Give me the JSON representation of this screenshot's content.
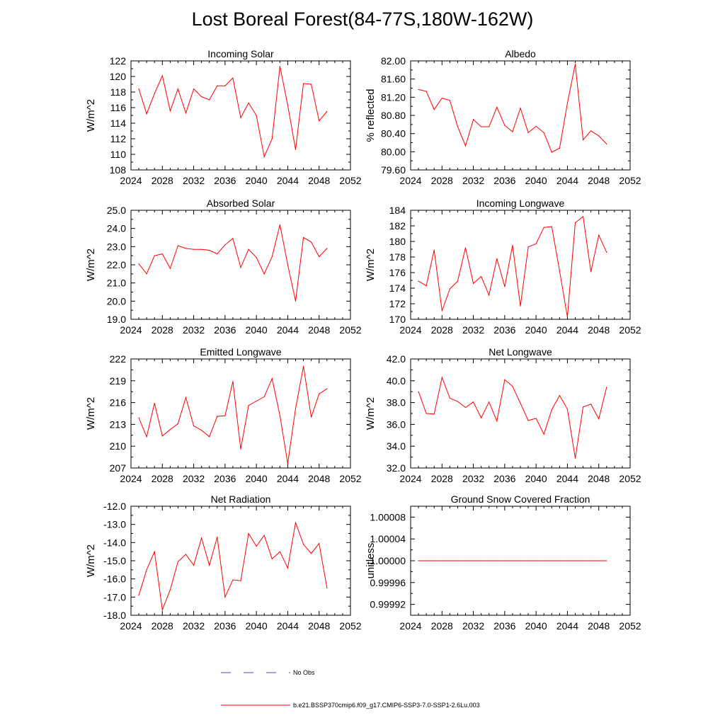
{
  "title": "Lost Boreal Forest(84-77S,180W-162W)",
  "legend": [
    {
      "label": "No Obs",
      "color": "#4a4ad8",
      "dash": true
    },
    {
      "label": "b.e21.BSSP370cmip6.f09_g17.CMIP6-SSP3-7.0-SSP1-2.6Lu.003",
      "color": "#ff0000",
      "dash": false
    }
  ],
  "chart_data": [
    {
      "type": "line",
      "title": "Incoming Solar",
      "ylabel": "W/m^2",
      "xlim": [
        2024,
        2052
      ],
      "ylim": [
        108,
        122
      ],
      "xticks": [
        "2024",
        "2028",
        "2032",
        "2036",
        "2040",
        "2044",
        "2048",
        "2052"
      ],
      "yticks": [
        "108",
        "110",
        "112",
        "114",
        "116",
        "118",
        "120",
        "122"
      ],
      "x": [
        2025,
        2026,
        2027,
        2028,
        2029,
        2030,
        2031,
        2032,
        2033,
        2034,
        2035,
        2036,
        2037,
        2038,
        2039,
        2040,
        2041,
        2042,
        2043,
        2044,
        2045,
        2046,
        2047,
        2048,
        2049
      ],
      "series": [
        {
          "values": [
            118.4,
            115.2,
            117.8,
            120.1,
            115.6,
            118.4,
            115.3,
            118.4,
            117.4,
            117.0,
            118.8,
            118.8,
            119.8,
            114.7,
            116.6,
            115.0,
            109.7,
            112.0,
            121.3,
            116.3,
            110.6,
            119.1,
            119.0,
            114.3,
            115.5
          ],
          "color": "#ff0000"
        }
      ]
    },
    {
      "type": "line",
      "title": "Albedo",
      "ylabel": "% reflected",
      "xlim": [
        2024,
        2052
      ],
      "ylim": [
        79.6,
        82.0
      ],
      "xticks": [
        "2024",
        "2028",
        "2032",
        "2036",
        "2040",
        "2044",
        "2048",
        "2052"
      ],
      "yticks": [
        "79.60",
        "80.00",
        "80.40",
        "80.80",
        "81.20",
        "81.60",
        "82.00"
      ],
      "x": [
        2025,
        2026,
        2027,
        2028,
        2029,
        2030,
        2031,
        2032,
        2033,
        2034,
        2035,
        2036,
        2037,
        2038,
        2039,
        2040,
        2041,
        2042,
        2043,
        2044,
        2045,
        2046,
        2047,
        2048,
        2049
      ],
      "series": [
        {
          "values": [
            81.37,
            81.33,
            80.93,
            81.18,
            81.13,
            80.55,
            80.13,
            80.71,
            80.55,
            80.55,
            80.98,
            80.58,
            80.44,
            80.96,
            80.42,
            80.56,
            80.42,
            79.99,
            80.08,
            81.07,
            81.93,
            80.26,
            80.46,
            80.35,
            80.17
          ],
          "color": "#ff0000"
        }
      ]
    },
    {
      "type": "line",
      "title": "Absorbed Solar",
      "ylabel": "W/m^2",
      "xlim": [
        2024,
        2052
      ],
      "ylim": [
        19.0,
        25.0
      ],
      "xticks": [
        "2024",
        "2028",
        "2032",
        "2036",
        "2040",
        "2044",
        "2048",
        "2052"
      ],
      "yticks": [
        "19.0",
        "20.0",
        "21.0",
        "22.0",
        "23.0",
        "24.0",
        "25.0"
      ],
      "x": [
        2025,
        2026,
        2027,
        2028,
        2029,
        2030,
        2031,
        2032,
        2033,
        2034,
        2035,
        2036,
        2037,
        2038,
        2039,
        2040,
        2041,
        2042,
        2043,
        2044,
        2045,
        2046,
        2047,
        2048,
        2049
      ],
      "series": [
        {
          "values": [
            22.05,
            21.5,
            22.5,
            22.6,
            21.8,
            23.05,
            22.9,
            22.85,
            22.85,
            22.8,
            22.6,
            23.1,
            23.45,
            21.85,
            22.85,
            22.4,
            21.5,
            22.45,
            24.2,
            22.0,
            20.0,
            23.5,
            23.25,
            22.45,
            22.9
          ],
          "color": "#ff0000"
        }
      ]
    },
    {
      "type": "line",
      "title": "Incoming Longwave",
      "ylabel": "W/m^2",
      "xlim": [
        2024,
        2052
      ],
      "ylim": [
        170,
        184
      ],
      "xticks": [
        "2024",
        "2028",
        "2032",
        "2036",
        "2040",
        "2044",
        "2048",
        "2052"
      ],
      "yticks": [
        "170",
        "172",
        "174",
        "176",
        "178",
        "180",
        "182",
        "184"
      ],
      "x": [
        2025,
        2026,
        2027,
        2028,
        2029,
        2030,
        2031,
        2032,
        2033,
        2034,
        2035,
        2036,
        2037,
        2038,
        2039,
        2040,
        2041,
        2042,
        2043,
        2044,
        2045,
        2046,
        2047,
        2048,
        2049
      ],
      "series": [
        {
          "values": [
            174.9,
            174.3,
            178.9,
            171.1,
            173.9,
            174.9,
            179.2,
            174.6,
            175.5,
            173.1,
            177.8,
            174.2,
            179.5,
            171.7,
            179.3,
            179.7,
            181.8,
            181.9,
            176.2,
            170.3,
            182.4,
            183.2,
            176.1,
            180.8,
            178.6
          ],
          "color": "#ff0000"
        }
      ]
    },
    {
      "type": "line",
      "title": "Emitted Longwave",
      "ylabel": "W/m^2",
      "xlim": [
        2024,
        2052
      ],
      "ylim": [
        207,
        222
      ],
      "xticks": [
        "2024",
        "2028",
        "2032",
        "2036",
        "2040",
        "2044",
        "2048",
        "2052"
      ],
      "yticks": [
        "207",
        "210",
        "213",
        "216",
        "219",
        "222"
      ],
      "x": [
        2025,
        2026,
        2027,
        2028,
        2029,
        2030,
        2031,
        2032,
        2033,
        2034,
        2035,
        2036,
        2037,
        2038,
        2039,
        2040,
        2041,
        2042,
        2043,
        2044,
        2045,
        2046,
        2047,
        2048,
        2049
      ],
      "series": [
        {
          "values": [
            213.9,
            211.3,
            215.9,
            211.4,
            212.3,
            213.1,
            216.7,
            212.8,
            212.2,
            211.3,
            214.1,
            214.2,
            218.9,
            209.6,
            215.6,
            216.2,
            216.8,
            219.3,
            214.2,
            207.6,
            215.2,
            221.0,
            214.0,
            217.2,
            217.9
          ],
          "color": "#ff0000"
        }
      ]
    },
    {
      "type": "line",
      "title": "Net Longwave",
      "ylabel": "W/m^2",
      "xlim": [
        2024,
        2052
      ],
      "ylim": [
        32.0,
        42.0
      ],
      "xticks": [
        "2024",
        "2028",
        "2032",
        "2036",
        "2040",
        "2044",
        "2048",
        "2052"
      ],
      "yticks": [
        "32.0",
        "34.0",
        "36.0",
        "38.0",
        "40.0",
        "42.0"
      ],
      "x": [
        2025,
        2026,
        2027,
        2028,
        2029,
        2030,
        2031,
        2032,
        2033,
        2034,
        2035,
        2036,
        2037,
        2038,
        2039,
        2040,
        2041,
        2042,
        2043,
        2044,
        2045,
        2046,
        2047,
        2048,
        2049
      ],
      "series": [
        {
          "values": [
            39.0,
            37.0,
            36.95,
            40.3,
            38.4,
            38.1,
            37.55,
            38.05,
            36.6,
            38.05,
            36.3,
            40.1,
            39.5,
            37.95,
            36.35,
            36.55,
            35.1,
            37.35,
            38.65,
            37.4,
            32.9,
            37.6,
            37.85,
            36.5,
            39.4
          ],
          "color": "#ff0000"
        }
      ]
    },
    {
      "type": "line",
      "title": "Net Radiation",
      "ylabel": "W/m^2",
      "xlim": [
        2024,
        2052
      ],
      "ylim": [
        -18.0,
        -12.0
      ],
      "xticks": [
        "2024",
        "2028",
        "2032",
        "2036",
        "2040",
        "2044",
        "2048",
        "2052"
      ],
      "yticks": [
        "-18.0",
        "-17.0",
        "-16.0",
        "-15.0",
        "-14.0",
        "-13.0",
        "-12.0"
      ],
      "x": [
        2025,
        2026,
        2027,
        2028,
        2029,
        2030,
        2031,
        2032,
        2033,
        2034,
        2035,
        2036,
        2037,
        2038,
        2039,
        2040,
        2041,
        2042,
        2043,
        2044,
        2045,
        2046,
        2047,
        2048,
        2049
      ],
      "series": [
        {
          "values": [
            -16.9,
            -15.5,
            -14.5,
            -17.7,
            -16.6,
            -15.05,
            -14.65,
            -15.25,
            -13.75,
            -15.25,
            -13.7,
            -17.0,
            -16.05,
            -16.1,
            -13.5,
            -14.2,
            -13.6,
            -14.9,
            -14.5,
            -15.4,
            -12.9,
            -14.1,
            -14.6,
            -14.05,
            -16.5
          ],
          "color": "#ff0000"
        }
      ]
    },
    {
      "type": "line",
      "title": "Ground Snow Covered Fraction",
      "ylabel": "unitless",
      "xlim": [
        2024,
        2052
      ],
      "ylim": [
        0.9999,
        1.0001
      ],
      "xticks": [
        "2024",
        "2028",
        "2032",
        "2036",
        "2040",
        "2044",
        "2048",
        "2052"
      ],
      "yticks": [
        "0.99992",
        "0.99996",
        "1.00000",
        "1.00004",
        "1.00008"
      ],
      "x": [
        2025,
        2026,
        2027,
        2028,
        2029,
        2030,
        2031,
        2032,
        2033,
        2034,
        2035,
        2036,
        2037,
        2038,
        2039,
        2040,
        2041,
        2042,
        2043,
        2044,
        2045,
        2046,
        2047,
        2048,
        2049
      ],
      "series": [
        {
          "values": [
            1.0,
            1.0,
            1.0,
            1.0,
            1.0,
            1.0,
            1.0,
            1.0,
            1.0,
            1.0,
            1.0,
            1.0,
            1.0,
            1.0,
            1.0,
            1.0,
            1.0,
            1.0,
            1.0,
            1.0,
            1.0,
            1.0,
            1.0,
            1.0,
            1.0
          ],
          "color": "#ff0000"
        }
      ]
    }
  ]
}
